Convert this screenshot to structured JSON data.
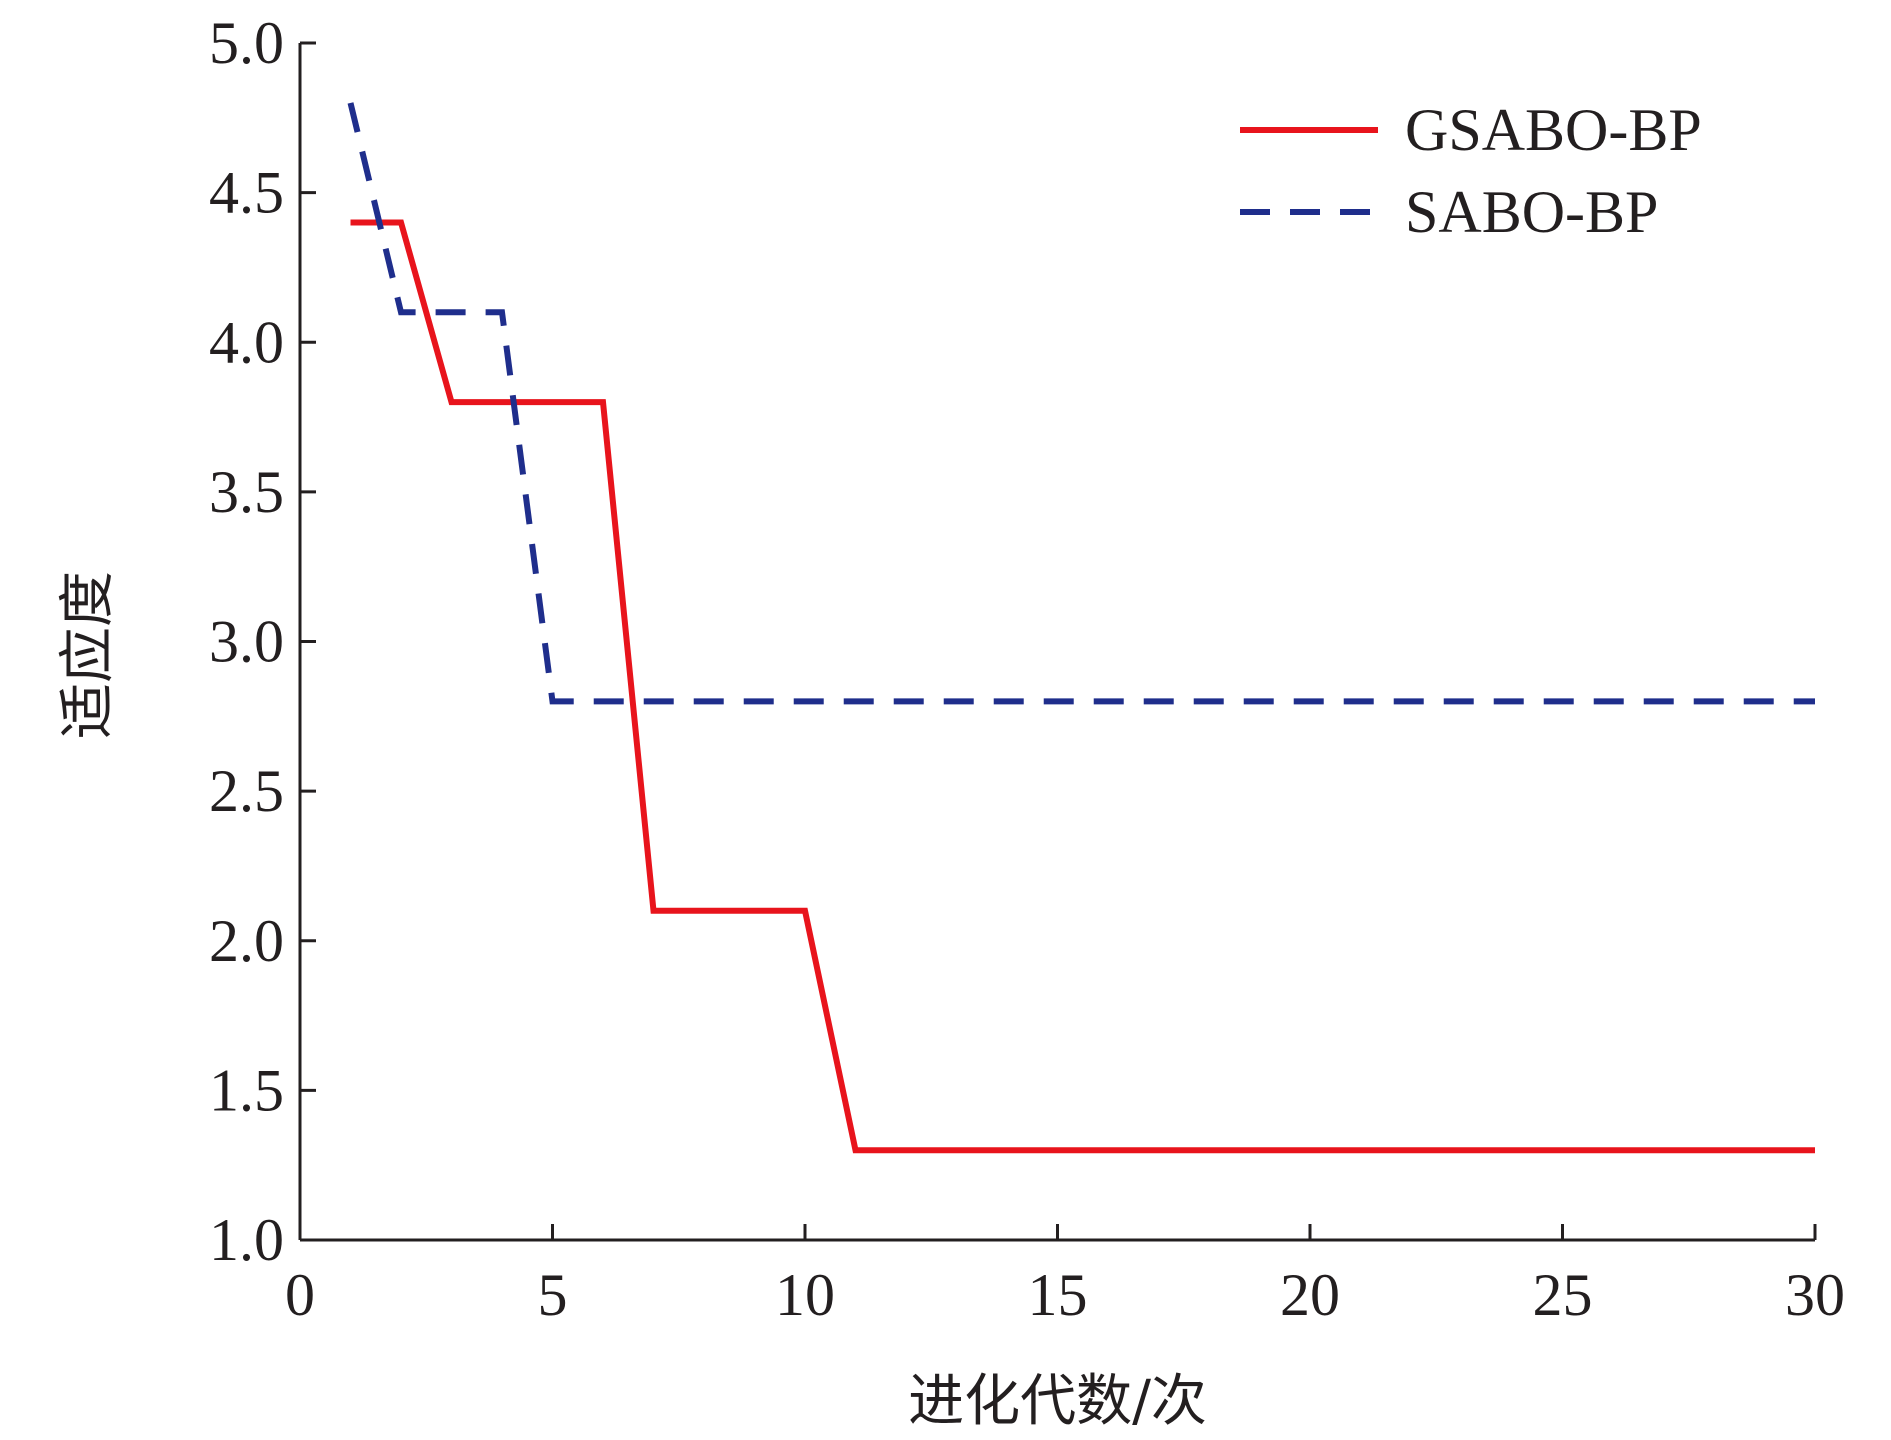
{
  "chart_data": {
    "type": "line",
    "title": "",
    "xlabel": "进化代数/次",
    "ylabel": "适应度",
    "xlim": [
      0,
      30
    ],
    "ylim": [
      1.0,
      5.0
    ],
    "x_ticks": [
      "0",
      "5",
      "10",
      "15",
      "20",
      "25",
      "30"
    ],
    "y_ticks": [
      "1.0",
      "1.5",
      "2.0",
      "2.5",
      "3.0",
      "3.5",
      "4.0",
      "4.5",
      "5.0"
    ],
    "grid": false,
    "legend_position": "top-right",
    "series": [
      {
        "name": "GSABO-BP",
        "color": "#e8141c",
        "style": "solid",
        "x": [
          1,
          2,
          3,
          4,
          5,
          6,
          7,
          8,
          9,
          10,
          11,
          12,
          13,
          14,
          15,
          16,
          17,
          18,
          19,
          20,
          21,
          22,
          23,
          24,
          25,
          26,
          27,
          28,
          29,
          30
        ],
        "y": [
          4.4,
          4.4,
          3.8,
          3.8,
          3.8,
          3.8,
          2.1,
          2.1,
          2.1,
          2.1,
          1.3,
          1.3,
          1.3,
          1.3,
          1.3,
          1.3,
          1.3,
          1.3,
          1.3,
          1.3,
          1.3,
          1.3,
          1.3,
          1.3,
          1.3,
          1.3,
          1.3,
          1.3,
          1.3,
          1.3
        ]
      },
      {
        "name": "SABO-BP",
        "color": "#1f2e8c",
        "style": "dashed",
        "x": [
          1,
          2,
          3,
          4,
          5,
          6,
          7,
          8,
          9,
          10,
          11,
          12,
          13,
          14,
          15,
          16,
          17,
          18,
          19,
          20,
          21,
          22,
          23,
          24,
          25,
          26,
          27,
          28,
          29,
          30
        ],
        "y": [
          4.8,
          4.1,
          4.1,
          4.1,
          2.8,
          2.8,
          2.8,
          2.8,
          2.8,
          2.8,
          2.8,
          2.8,
          2.8,
          2.8,
          2.8,
          2.8,
          2.8,
          2.8,
          2.8,
          2.8,
          2.8,
          2.8,
          2.8,
          2.8,
          2.8,
          2.8,
          2.8,
          2.8,
          2.8,
          2.8
        ]
      }
    ]
  }
}
